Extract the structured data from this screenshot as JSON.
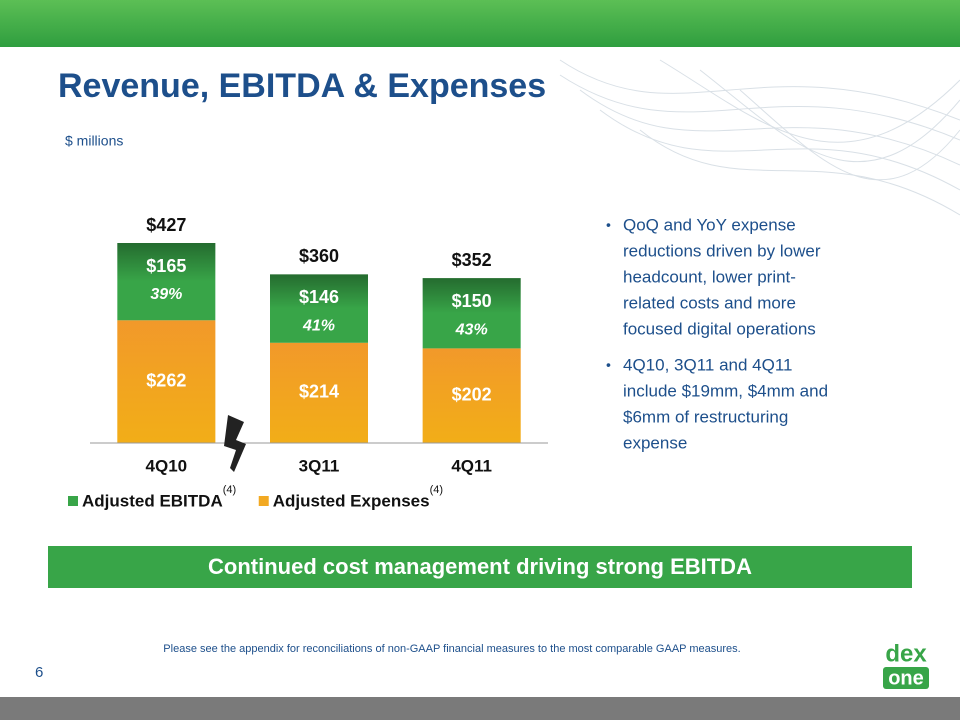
{
  "header": {
    "title": "Revenue, EBITDA & Expenses",
    "unit": "$ millions"
  },
  "chart_data": {
    "type": "bar",
    "stacked": true,
    "categories": [
      "4Q10",
      "3Q11",
      "4Q11"
    ],
    "series": [
      {
        "name": "Adjusted Expenses",
        "color": "#f2a922",
        "values": [
          262,
          214,
          202
        ],
        "value_labels": [
          "$262",
          "$214",
          "$202"
        ]
      },
      {
        "name": "Adjusted EBITDA",
        "color": "#38a548",
        "values": [
          165,
          146,
          150
        ],
        "value_labels": [
          "$165",
          "$146",
          "$150"
        ]
      }
    ],
    "total_labels": [
      "$427",
      "$360",
      "$352"
    ],
    "margin_labels": [
      "39%",
      "41%",
      "43%"
    ],
    "legend_note": "(4)"
  },
  "bullets": [
    [
      "QoQ and YoY expense",
      "reductions driven by lower",
      "headcount, lower print-",
      "related costs and more",
      "focused digital operations"
    ],
    [
      "4Q10, 3Q11 and 4Q11",
      "include $19mm, $4mm and",
      "$6mm of restructuring",
      "expense"
    ]
  ],
  "banner": "Continued cost management driving strong EBITDA",
  "footnote": "Please see the appendix for reconciliations of non-GAAP financial measures to the most comparable GAAP measures.",
  "page_number": "6",
  "logo": [
    "dex",
    "one"
  ]
}
